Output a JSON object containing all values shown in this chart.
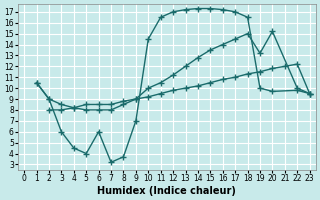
{
  "background_color": "#c8eaea",
  "grid_color": "#ffffff",
  "line_color": "#1a6b6b",
  "marker": "+",
  "markersize": 4,
  "linewidth": 1.0,
  "curve_hump_x": [
    1,
    2,
    3,
    4,
    5,
    6,
    7,
    8,
    9,
    10,
    11,
    12,
    13,
    14,
    15,
    16,
    17,
    18,
    19,
    20,
    22,
    23
  ],
  "curve_hump_y": [
    10.5,
    9.0,
    6.0,
    4.5,
    4.0,
    6.0,
    3.2,
    3.7,
    7.0,
    14.5,
    16.5,
    17.0,
    17.2,
    17.3,
    17.3,
    17.2,
    17.0,
    16.5,
    10.0,
    9.7,
    9.8,
    9.5
  ],
  "curve_upper_x": [
    1,
    2,
    3,
    4,
    5,
    6,
    7,
    8,
    9,
    10,
    11,
    12,
    13,
    14,
    15,
    16,
    17,
    18,
    19,
    20,
    22,
    23
  ],
  "curve_upper_y": [
    10.5,
    9.0,
    8.5,
    8.2,
    8.0,
    8.0,
    8.0,
    8.5,
    9.0,
    10.0,
    10.5,
    11.2,
    12.0,
    12.8,
    13.5,
    14.0,
    14.5,
    15.0,
    13.2,
    15.2,
    10.0,
    9.5
  ],
  "curve_lower_x": [
    2,
    3,
    4,
    5,
    6,
    7,
    8,
    9,
    10,
    11,
    12,
    13,
    14,
    15,
    16,
    17,
    18,
    19,
    20,
    21,
    22,
    23
  ],
  "curve_lower_y": [
    8.0,
    8.0,
    8.2,
    8.5,
    8.5,
    8.5,
    8.8,
    9.0,
    9.2,
    9.5,
    9.8,
    10.0,
    10.2,
    10.5,
    10.8,
    11.0,
    11.3,
    11.5,
    11.8,
    12.0,
    12.2,
    9.5
  ],
  "xlabel": "Humidex (Indice chaleur)",
  "xlim": [
    -0.5,
    23.5
  ],
  "ylim": [
    2.5,
    17.7
  ],
  "xticks": [
    0,
    1,
    2,
    3,
    4,
    5,
    6,
    7,
    8,
    9,
    10,
    11,
    12,
    13,
    14,
    15,
    16,
    17,
    18,
    19,
    20,
    21,
    22,
    23
  ],
  "yticks": [
    3,
    4,
    5,
    6,
    7,
    8,
    9,
    10,
    11,
    12,
    13,
    14,
    15,
    16,
    17
  ],
  "tick_fontsize": 5.5,
  "xlabel_fontsize": 7,
  "xlabel_fontweight": "bold"
}
